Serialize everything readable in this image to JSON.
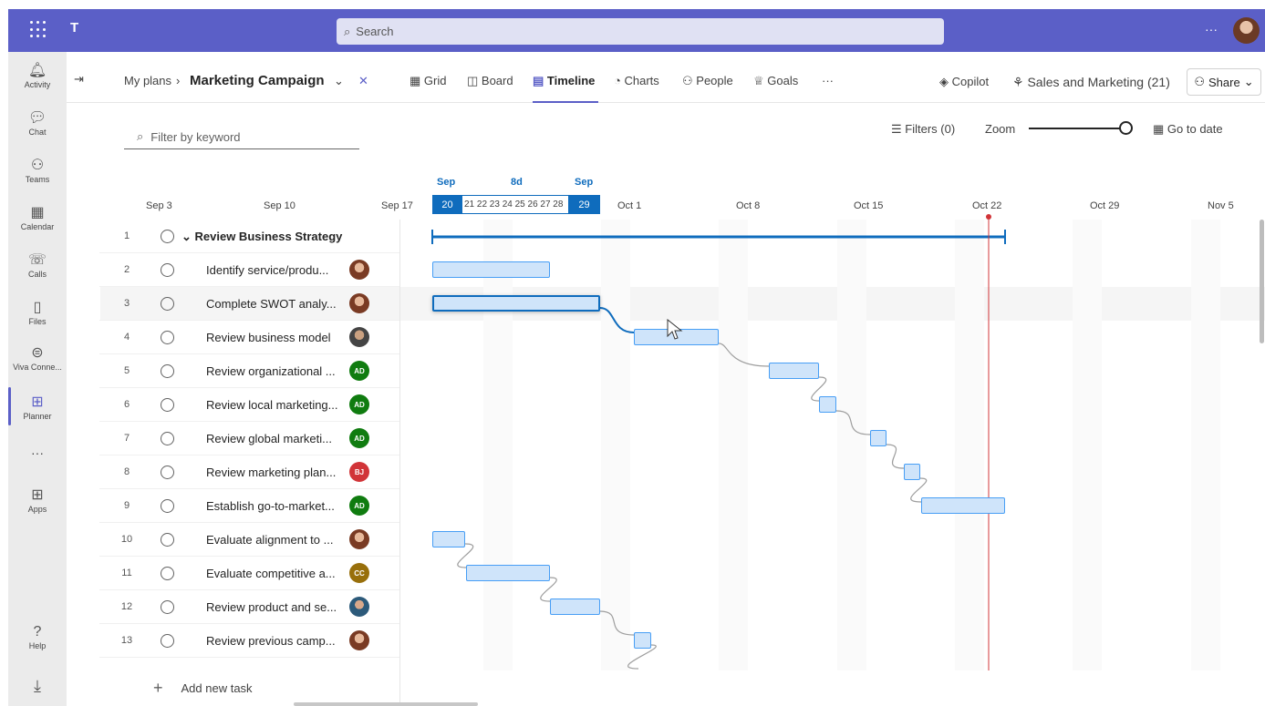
{
  "app": {
    "search_placeholder": "Search",
    "more_label": "···"
  },
  "rail": {
    "items": [
      {
        "label": "Activity",
        "icon": "bell-icon"
      },
      {
        "label": "Chat",
        "icon": "chat-icon"
      },
      {
        "label": "Teams",
        "icon": "teams-icon"
      },
      {
        "label": "Calendar",
        "icon": "calendar-icon"
      },
      {
        "label": "Calls",
        "icon": "phone-icon"
      },
      {
        "label": "Files",
        "icon": "file-icon"
      },
      {
        "label": "Viva Conne...",
        "icon": "viva-icon"
      },
      {
        "label": "Planner",
        "icon": "planner-icon"
      },
      {
        "label": "Apps",
        "icon": "apps-icon"
      },
      {
        "label": "Help",
        "icon": "help-icon"
      }
    ],
    "more": "···",
    "active": "Planner"
  },
  "header": {
    "breadcrumb_root": "My plans",
    "plan_name": "Marketing Campaign",
    "tabs": [
      {
        "label": "Grid",
        "icon": "grid-icon"
      },
      {
        "label": "Board",
        "icon": "board-icon"
      },
      {
        "label": "Timeline",
        "icon": "timeline-icon",
        "active": true
      },
      {
        "label": "Charts",
        "icon": "charts-icon"
      },
      {
        "label": "People",
        "icon": "people-icon"
      },
      {
        "label": "Goals",
        "icon": "trophy-icon"
      }
    ],
    "more_tabs": "···",
    "copilot": "Copilot",
    "group": "Sales and Marketing (21)",
    "share": "Share"
  },
  "toolbar": {
    "filter_placeholder": "Filter by keyword",
    "filters": "Filters (0)",
    "zoom": "Zoom",
    "go_to_date": "Go to date",
    "zoom_level": 1.0
  },
  "timeline_header": {
    "sel_start_month": "Sep",
    "sel_duration": "8d",
    "sel_end_month": "Sep",
    "sel_start_day": "20",
    "sel_mid_days": "21 22 23 24 25 26 27 28",
    "sel_end_day": "29",
    "dates": [
      "Sep 3",
      "Sep 10",
      "Sep 17",
      "Oct 1",
      "Oct 8",
      "Oct 15",
      "Oct 22",
      "Oct 29",
      "Nov 5"
    ]
  },
  "tasks": [
    {
      "num": "1",
      "title": "Review Business Strategy",
      "parent": true
    },
    {
      "num": "2",
      "title": "Identify service/produ...",
      "avatar": "photo"
    },
    {
      "num": "3",
      "title": "Complete SWOT analy...",
      "avatar": "photo"
    },
    {
      "num": "4",
      "title": "Review business model",
      "avatar": "photo2"
    },
    {
      "num": "5",
      "title": "Review organizational ...",
      "avatar": "AD",
      "color": "#107c10"
    },
    {
      "num": "6",
      "title": "Review local marketing...",
      "avatar": "AD",
      "color": "#107c10"
    },
    {
      "num": "7",
      "title": "Review global marketi...",
      "avatar": "AD",
      "color": "#107c10"
    },
    {
      "num": "8",
      "title": "Review marketing plan...",
      "avatar": "BJ",
      "color": "#d13438"
    },
    {
      "num": "9",
      "title": "Establish go-to-market...",
      "avatar": "AD",
      "color": "#107c10"
    },
    {
      "num": "10",
      "title": "Evaluate alignment to ...",
      "avatar": "photo"
    },
    {
      "num": "11",
      "title": "Evaluate competitive a...",
      "avatar": "CC",
      "color": "#986f0b"
    },
    {
      "num": "12",
      "title": "Review product and se...",
      "avatar": "photo3"
    },
    {
      "num": "13",
      "title": "Review previous camp...",
      "avatar": "photo"
    }
  ],
  "add_task": "Add new task"
}
